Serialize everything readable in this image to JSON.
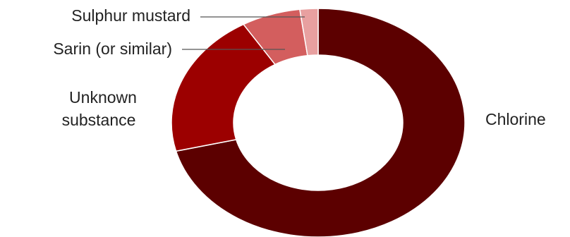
{
  "chart_data": {
    "type": "pie",
    "donut": true,
    "title": "",
    "categories": [
      "Chlorine",
      "Unknown substance",
      "Sarin (or similar)",
      "Sulphur mustard"
    ],
    "values": [
      71,
      20.5,
      6.5,
      2
    ],
    "value_unit": "percent (estimated)",
    "colors": [
      "#5c0000",
      "#9c0000",
      "#d35e5e",
      "#e8a0a0"
    ],
    "legend": "none",
    "labels": {
      "chlorine": "Chlorine",
      "unknown_line1": "Unknown",
      "unknown_line2": "substance",
      "sarin": "Sarin (or similar)",
      "mustard": "Sulphur mustard"
    }
  }
}
